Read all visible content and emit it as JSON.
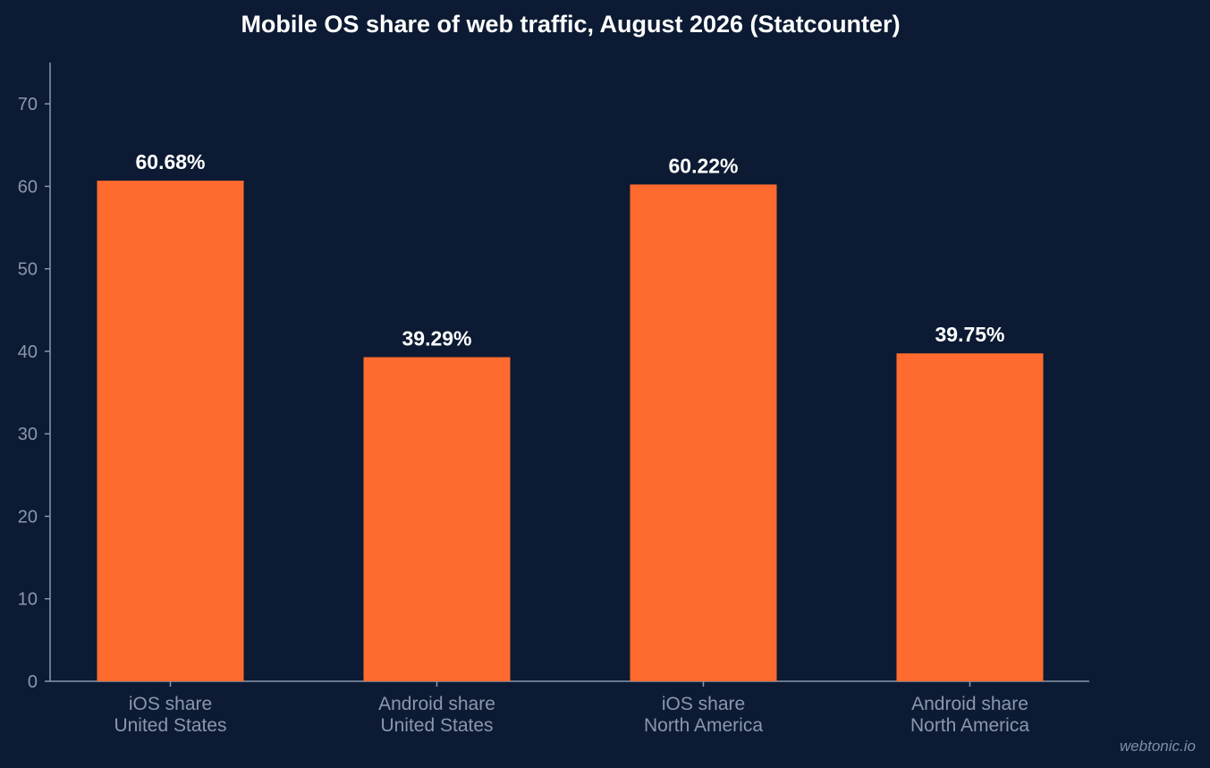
{
  "chart_data": {
    "type": "bar",
    "title": "Mobile OS share of web traffic, August 2026 (Statcounter)",
    "xlabel": "",
    "ylabel": "",
    "categories": [
      [
        "iOS share",
        "United States"
      ],
      [
        "Android share",
        "United States"
      ],
      [
        "iOS share",
        "North America"
      ],
      [
        "Android share",
        "North America"
      ]
    ],
    "values": [
      60.68,
      39.29,
      60.22,
      39.75
    ],
    "data_labels": [
      "60.68%",
      "39.29%",
      "60.22%",
      "39.75%"
    ],
    "ylim": [
      0,
      75
    ],
    "yticks": [
      0,
      10,
      20,
      30,
      40,
      50,
      60,
      70
    ],
    "grid": false,
    "legend": "none",
    "colors": {
      "background": "#0c1b33",
      "bar": "#ff6b2e",
      "axis": "#8a97ad",
      "text": "#ffffff"
    }
  },
  "watermark": "webtonic.io"
}
